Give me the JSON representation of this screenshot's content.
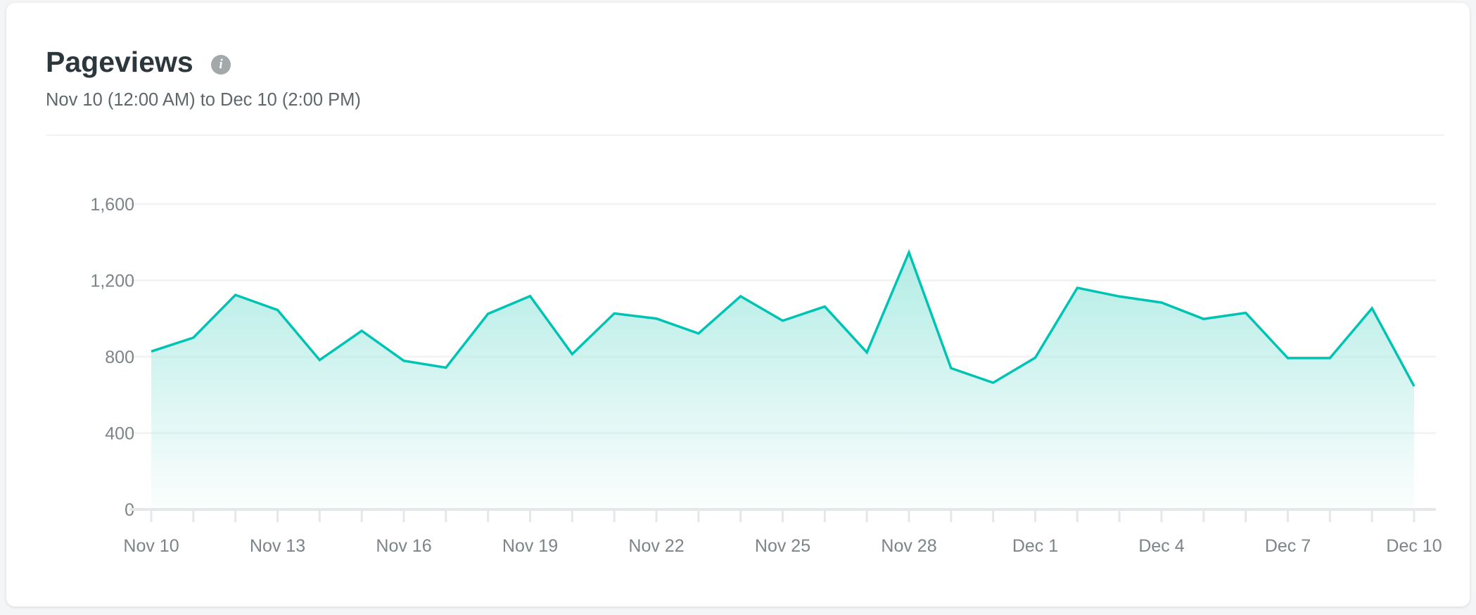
{
  "header": {
    "title": "Pageviews",
    "info_icon": "info-icon",
    "subtitle": "Nov 10 (12:00 AM) to Dec 10 (2:00 PM)"
  },
  "colors": {
    "line": "#00c4b3",
    "fill": "#b3ece5",
    "grid": "#f2f3f4",
    "axis": "#e6e7e8"
  },
  "chart_data": {
    "type": "area",
    "title": "Pageviews",
    "xlabel": "",
    "ylabel": "",
    "ylim": [
      0,
      1700
    ],
    "yticks": [
      0,
      400,
      800,
      1200,
      1600
    ],
    "ytick_labels": [
      "0",
      "400",
      "800",
      "1,200",
      "1,600"
    ],
    "grid": true,
    "x": [
      "Nov 10",
      "Nov 11",
      "Nov 12",
      "Nov 13",
      "Nov 14",
      "Nov 15",
      "Nov 16",
      "Nov 17",
      "Nov 18",
      "Nov 19",
      "Nov 20",
      "Nov 21",
      "Nov 22",
      "Nov 23",
      "Nov 24",
      "Nov 25",
      "Nov 26",
      "Nov 27",
      "Nov 28",
      "Nov 29",
      "Nov 30",
      "Dec 1",
      "Dec 2",
      "Dec 3",
      "Dec 4",
      "Dec 5",
      "Dec 6",
      "Dec 7",
      "Dec 8",
      "Dec 9",
      "Dec 10"
    ],
    "xtick_labels": [
      "Nov 10",
      "Nov 13",
      "Nov 16",
      "Nov 19",
      "Nov 22",
      "Nov 25",
      "Nov 28",
      "Dec 1",
      "Dec 4",
      "Dec 7",
      "Dec 10"
    ],
    "series": [
      {
        "values": [
          828,
          900,
          1124,
          1045,
          783,
          936,
          779,
          743,
          1025,
          1118,
          814,
          1027,
          1000,
          922,
          1117,
          989,
          1063,
          823,
          1347,
          740,
          664,
          795,
          1161,
          1116,
          1084,
          998,
          1030,
          793,
          793,
          1054,
          646
        ]
      }
    ]
  }
}
